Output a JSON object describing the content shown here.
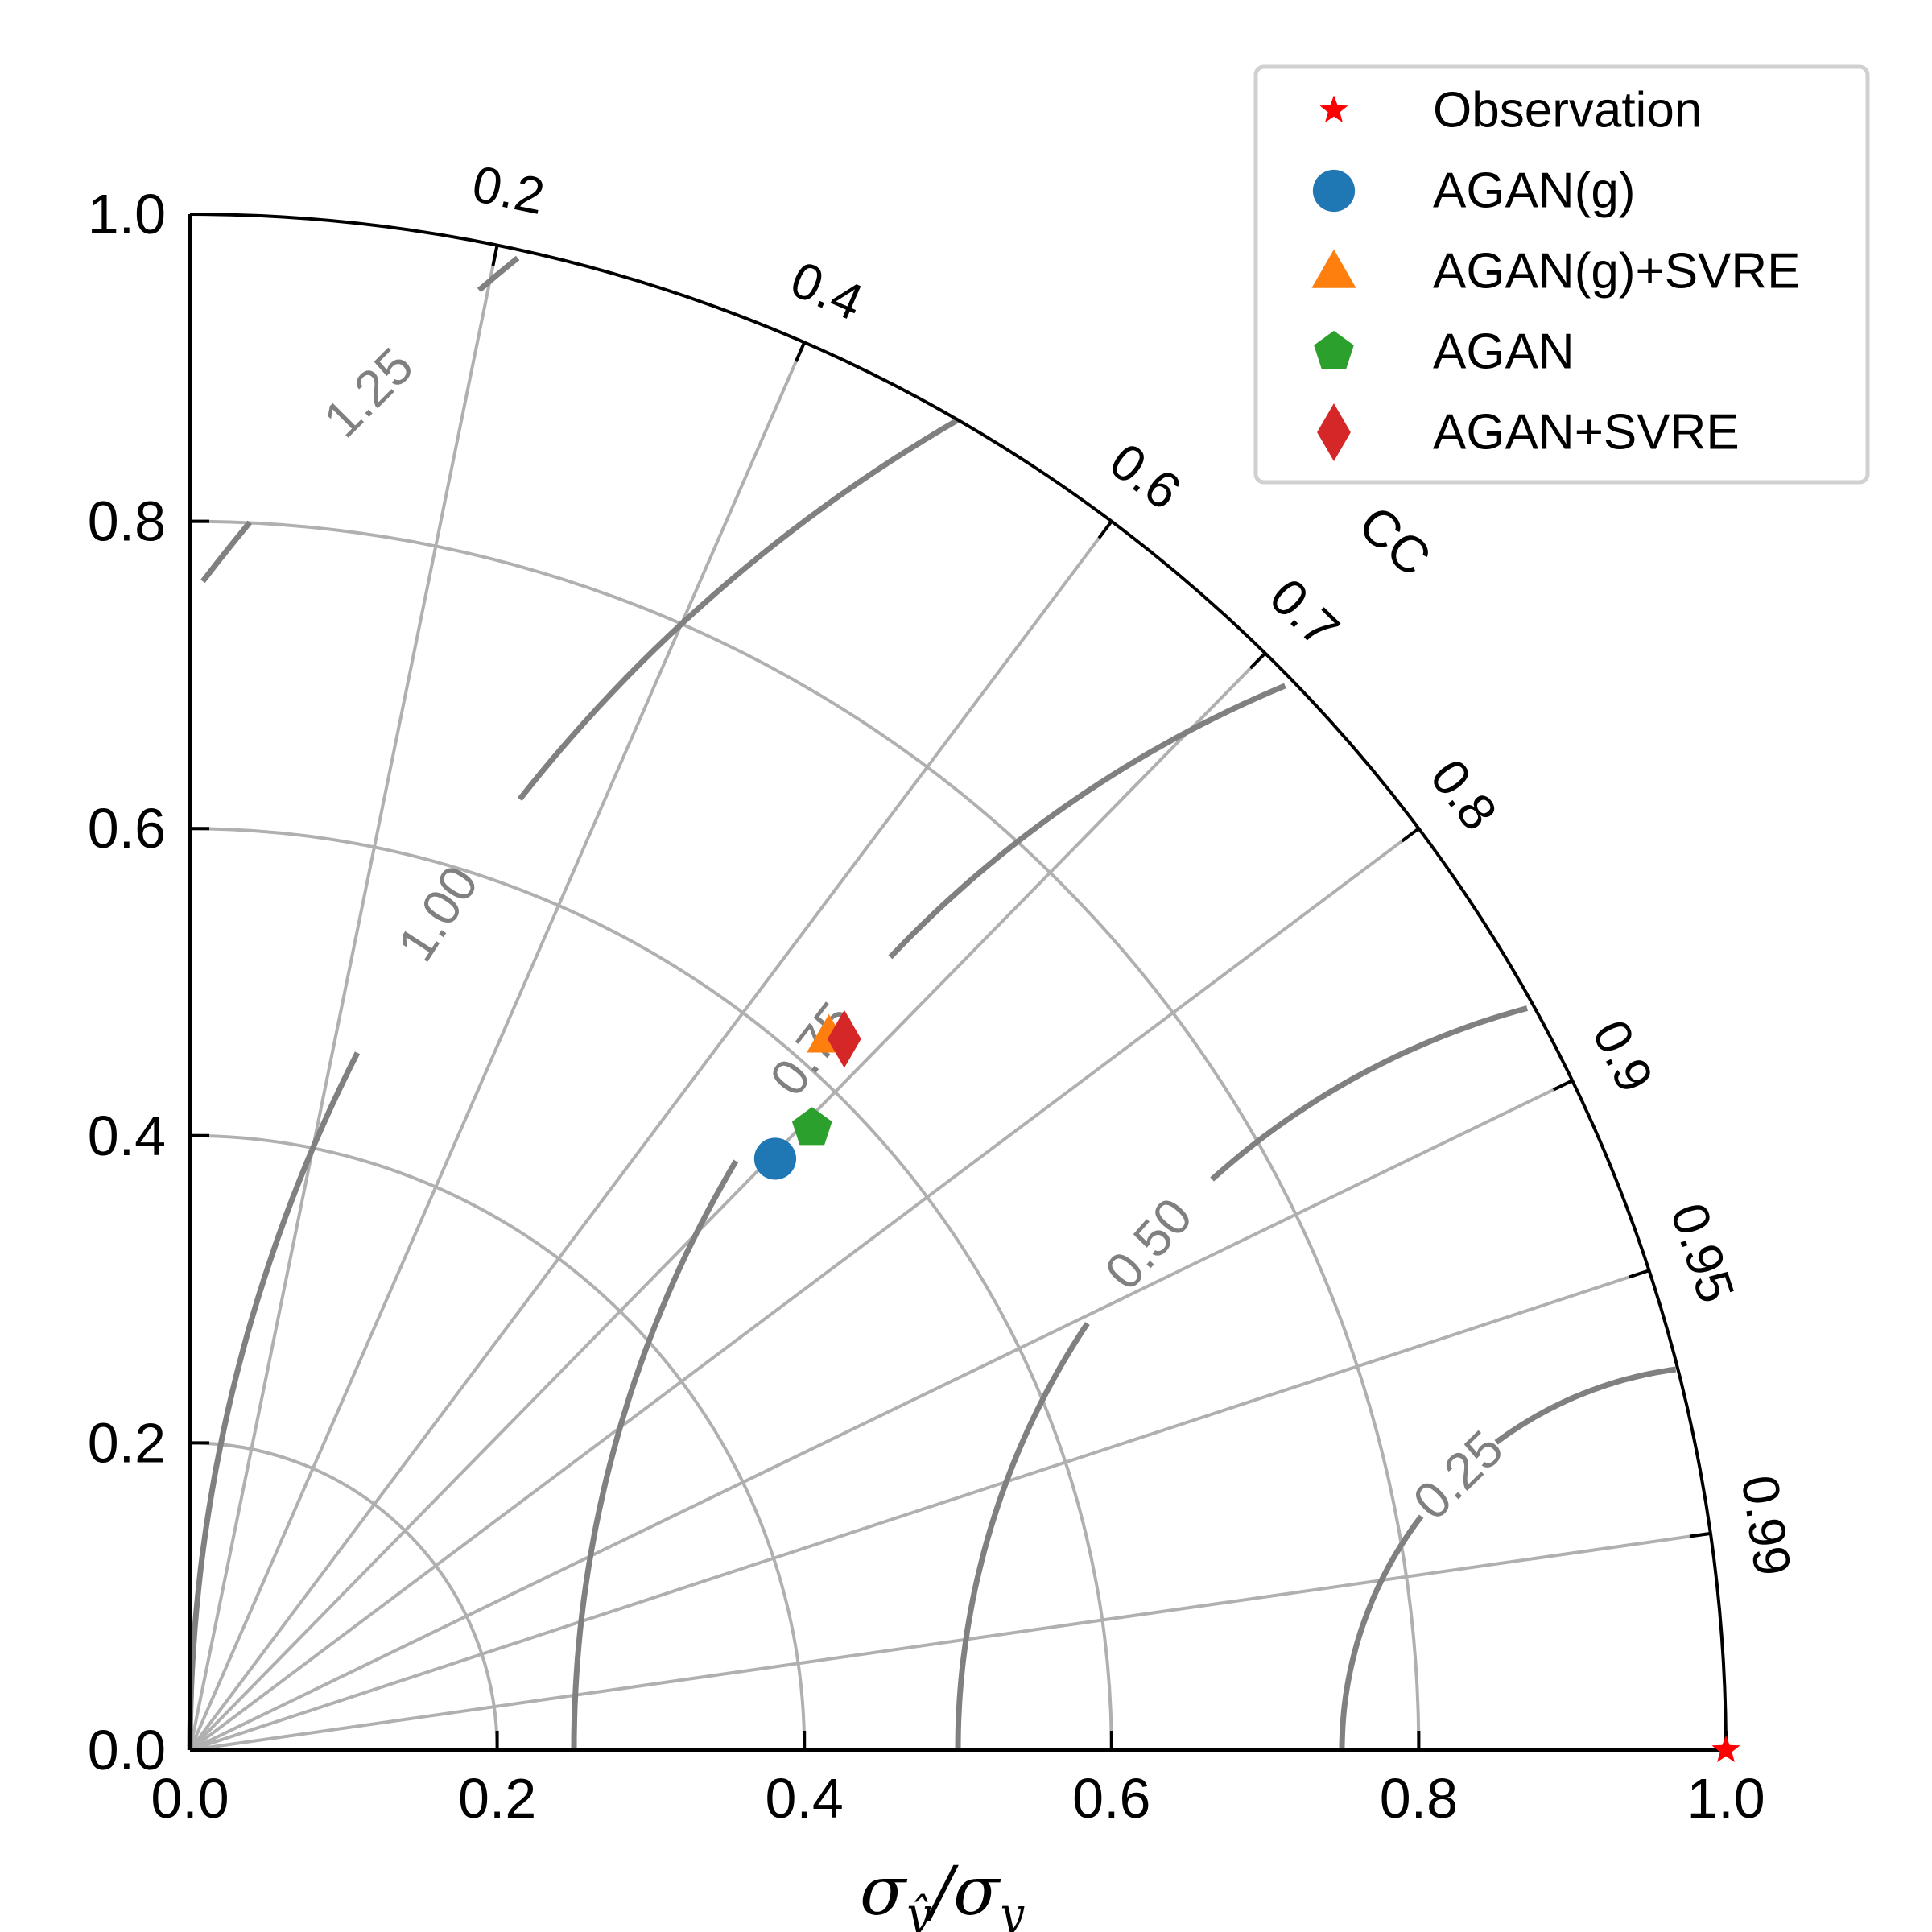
{
  "chart_data": {
    "type": "taylor_diagram",
    "title": "",
    "xlabel": "σ_ŷ/σ_y",
    "xlabel_parts": {
      "sigma": "σ",
      "yhat": "ŷ",
      "slash": "/",
      "y": "y"
    },
    "angular_label": "CC",
    "xlim": [
      0.0,
      1.0
    ],
    "ylim": [
      0.0,
      1.0
    ],
    "x_ticks": [
      "0.0",
      "0.2",
      "0.4",
      "0.6",
      "0.8",
      "1.0"
    ],
    "y_ticks": [
      "0.0",
      "0.2",
      "0.4",
      "0.6",
      "0.8",
      "1.0"
    ],
    "x_tick_values": [
      0.0,
      0.2,
      0.4,
      0.6,
      0.8,
      1.0
    ],
    "y_tick_values": [
      0.0,
      0.2,
      0.4,
      0.6,
      0.8,
      1.0
    ],
    "cc_ticks": [
      {
        "value": 0.2,
        "label": "0.2"
      },
      {
        "value": 0.4,
        "label": "0.4"
      },
      {
        "value": 0.6,
        "label": "0.6"
      },
      {
        "value": 0.7,
        "label": "0.7"
      },
      {
        "value": 0.8,
        "label": "0.8"
      },
      {
        "value": 0.9,
        "label": "0.9"
      },
      {
        "value": 0.95,
        "label": "0.95"
      },
      {
        "value": 0.99,
        "label": "0.99"
      }
    ],
    "std_arcs": [
      0.2,
      0.4,
      0.6,
      0.8
    ],
    "crms_contours": [
      {
        "value": 0.25,
        "label": "0.25"
      },
      {
        "value": 0.5,
        "label": "0.50"
      },
      {
        "value": 0.75,
        "label": "0.75"
      },
      {
        "value": 1.0,
        "label": "1.00"
      },
      {
        "value": 1.25,
        "label": "1.25"
      }
    ],
    "grid": true,
    "legend_position": "top-right",
    "points": [
      {
        "name": "Observation",
        "marker": "star",
        "color": "#ff0000",
        "x": 1.0,
        "y": 0.0
      },
      {
        "name": "AGAN(g)",
        "marker": "circle",
        "color": "#1f77b4",
        "x": 0.381,
        "y": 0.385
      },
      {
        "name": "AGAN(g)+SVRE",
        "marker": "triangle",
        "color": "#ff7f0e",
        "x": 0.416,
        "y": 0.465
      },
      {
        "name": "AGAN",
        "marker": "pentagon",
        "color": "#2ca02c",
        "x": 0.405,
        "y": 0.405
      },
      {
        "name": "AGAN+SVRE",
        "marker": "diamond",
        "color": "#d62728",
        "x": 0.426,
        "y": 0.463
      }
    ],
    "colors": {
      "axis": "#000000",
      "grid": "#b0b0b0",
      "crms": "#808080"
    }
  }
}
